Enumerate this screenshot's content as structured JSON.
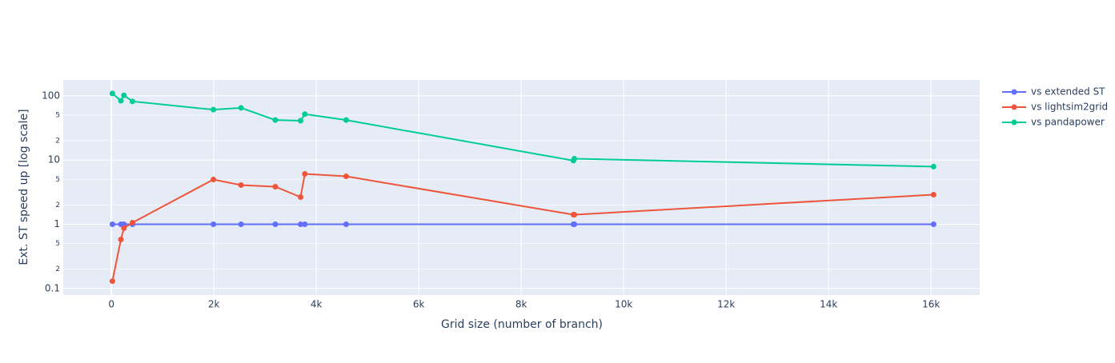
{
  "chart_data": {
    "type": "line",
    "x_label": "Grid size (number of branch)",
    "y_label": "Ext. ST speed up [log scale]",
    "log_y": true,
    "grid": true,
    "legend": "top-right",
    "x": [
      20,
      186,
      245,
      411,
      1991,
      2531,
      3200,
      3693,
      3776,
      4582,
      9019,
      9037,
      16049
    ],
    "series": [
      {
        "name": "vs extended ST",
        "color": "#636efa",
        "values": [
          1,
          1,
          1,
          1,
          1,
          1,
          1,
          1,
          1,
          1,
          1,
          1,
          1
        ]
      },
      {
        "name": "vs lightsim2grid",
        "color": "#EF553B",
        "values": [
          0.13,
          0.58,
          0.87,
          1.06,
          4.98,
          4.08,
          3.85,
          2.65,
          6.09,
          5.58,
          1.41,
          1.41,
          2.89
        ]
      },
      {
        "name": "vs pandapower",
        "color": "#00cc96",
        "values": [
          109,
          84,
          102,
          82,
          61,
          65,
          42,
          41,
          52,
          42,
          9.8,
          10.5,
          7.9
        ]
      }
    ],
    "xlim": [
      -940,
      16950
    ],
    "xticks": [
      0,
      {
        "value": 2000,
        "label": "2k"
      },
      {
        "value": 4000,
        "label": "4k"
      },
      {
        "value": 6000,
        "label": "6k"
      },
      {
        "value": 8000,
        "label": "8k"
      },
      {
        "value": 10000,
        "label": "10k"
      },
      {
        "value": 12000,
        "label": "12k"
      },
      {
        "value": 14000,
        "label": "14k"
      },
      {
        "value": 16000,
        "label": "16k"
      }
    ],
    "ylim": [
      0.079,
      177
    ],
    "yticks": [
      0.1,
      {
        "value": 0.2,
        "label": "2"
      },
      {
        "value": 0.5,
        "label": "5"
      },
      1,
      {
        "value": 2,
        "label": "2"
      },
      {
        "value": 5,
        "label": "5"
      },
      10,
      {
        "value": 20,
        "label": "2"
      },
      {
        "value": 50,
        "label": "5"
      },
      100
    ]
  }
}
